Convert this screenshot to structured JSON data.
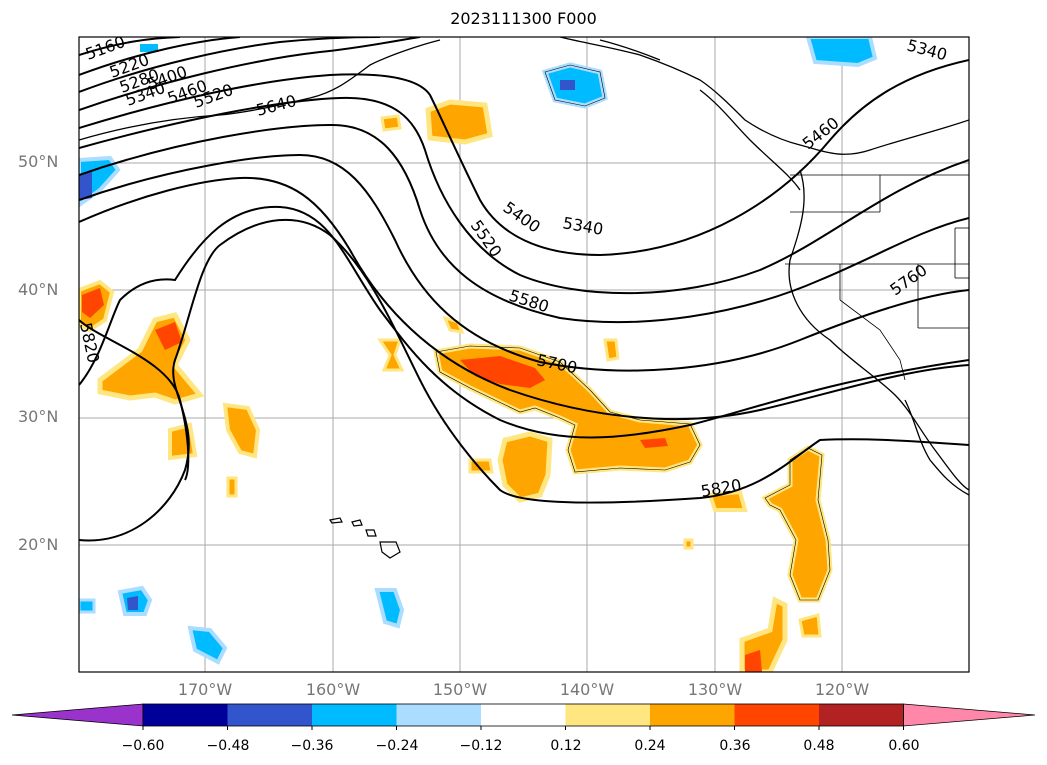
{
  "title": "2023111300 F000",
  "latitude_labels": [
    {
      "id": "lat-50",
      "text": "50°N"
    },
    {
      "id": "lat-40",
      "text": "40°N"
    },
    {
      "id": "lat-30",
      "text": "30°N"
    },
    {
      "id": "lat-20",
      "text": "20°N"
    }
  ],
  "longitude_labels": [
    {
      "id": "lon-170",
      "text": "170°W"
    },
    {
      "id": "lon-160",
      "text": "160°W"
    },
    {
      "id": "lon-150",
      "text": "150°W"
    },
    {
      "id": "lon-140",
      "text": "140°W"
    },
    {
      "id": "lon-130",
      "text": "130°W"
    },
    {
      "id": "lon-120",
      "text": "120°W"
    }
  ],
  "contour_labels": [
    "5160",
    "5220",
    "5280",
    "5340",
    "5400",
    "5460",
    "5520",
    "5640",
    "5400",
    "5520",
    "5340",
    "5580",
    "5700",
    "5460",
    "5760",
    "5820",
    "5820",
    "5340"
  ],
  "colorbar": {
    "colors": [
      "#9933cc",
      "#000099",
      "#3355cc",
      "#00bbff",
      "#aaddff",
      "#ffffff",
      "#ffe680",
      "#ffa500",
      "#ff4500",
      "#b22222",
      "#ff88aa"
    ],
    "tick_labels": [
      "−0.60",
      "−0.48",
      "−0.36",
      "−0.24",
      "−0.12",
      "0.12",
      "0.24",
      "0.36",
      "0.48",
      "0.60"
    ]
  }
}
